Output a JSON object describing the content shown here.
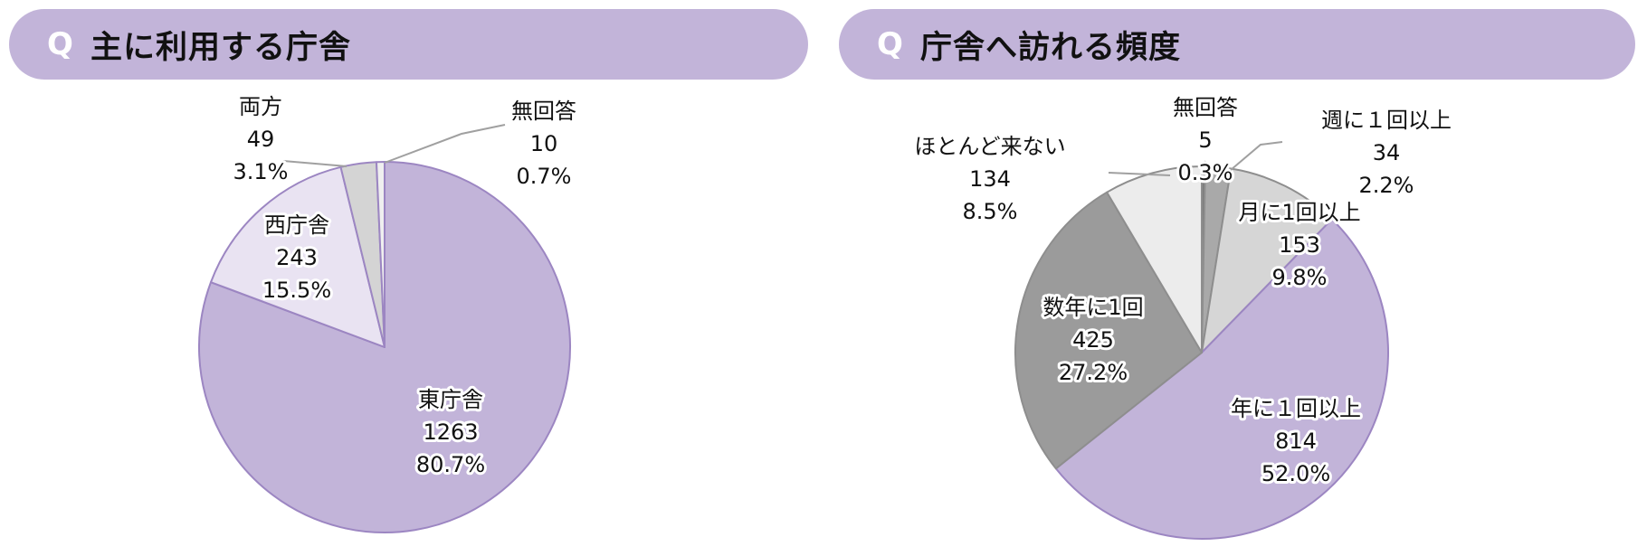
{
  "chart_data": [
    {
      "type": "pie",
      "title": "主に利用する庁舎",
      "slices": [
        {
          "label": "東庁舎",
          "count": "1263",
          "percent": "80.7%",
          "value": 80.7,
          "color": "#c2b4d9"
        },
        {
          "label": "西庁舎",
          "count": "243",
          "percent": "15.5%",
          "value": 15.5,
          "color": "#e9e3f2"
        },
        {
          "label": "両方",
          "count": "49",
          "percent": "3.1%",
          "value": 3.1,
          "color": "#d4d4d4"
        },
        {
          "label": "無回答",
          "count": "10",
          "percent": "0.7%",
          "value": 0.7,
          "color": "#efefef"
        }
      ]
    },
    {
      "type": "pie",
      "title": "庁舎へ訪れる頻度",
      "slices": [
        {
          "label": "無回答",
          "count": "5",
          "percent": "0.3%",
          "value": 0.3,
          "color": "#7a7a7a"
        },
        {
          "label": "週に１回以上",
          "count": "34",
          "percent": "2.2%",
          "value": 2.2,
          "color": "#a9a9a9"
        },
        {
          "label": "月に1回以上",
          "count": "153",
          "percent": "9.8%",
          "value": 9.8,
          "color": "#d6d6d6"
        },
        {
          "label": "年に１回以上",
          "count": "814",
          "percent": "52.0%",
          "value": 52.0,
          "color": "#c2b4d9"
        },
        {
          "label": "数年に1回",
          "count": "425",
          "percent": "27.2%",
          "value": 27.2,
          "color": "#9b9b9b"
        },
        {
          "label": "ほとんど来ない",
          "count": "134",
          "percent": "8.5%",
          "value": 8.5,
          "color": "#ececec"
        }
      ]
    }
  ],
  "panels": [
    {
      "q": "Q",
      "title": "主に利用する庁舎"
    },
    {
      "q": "Q",
      "title": "庁舎へ訪れる頻度"
    }
  ]
}
